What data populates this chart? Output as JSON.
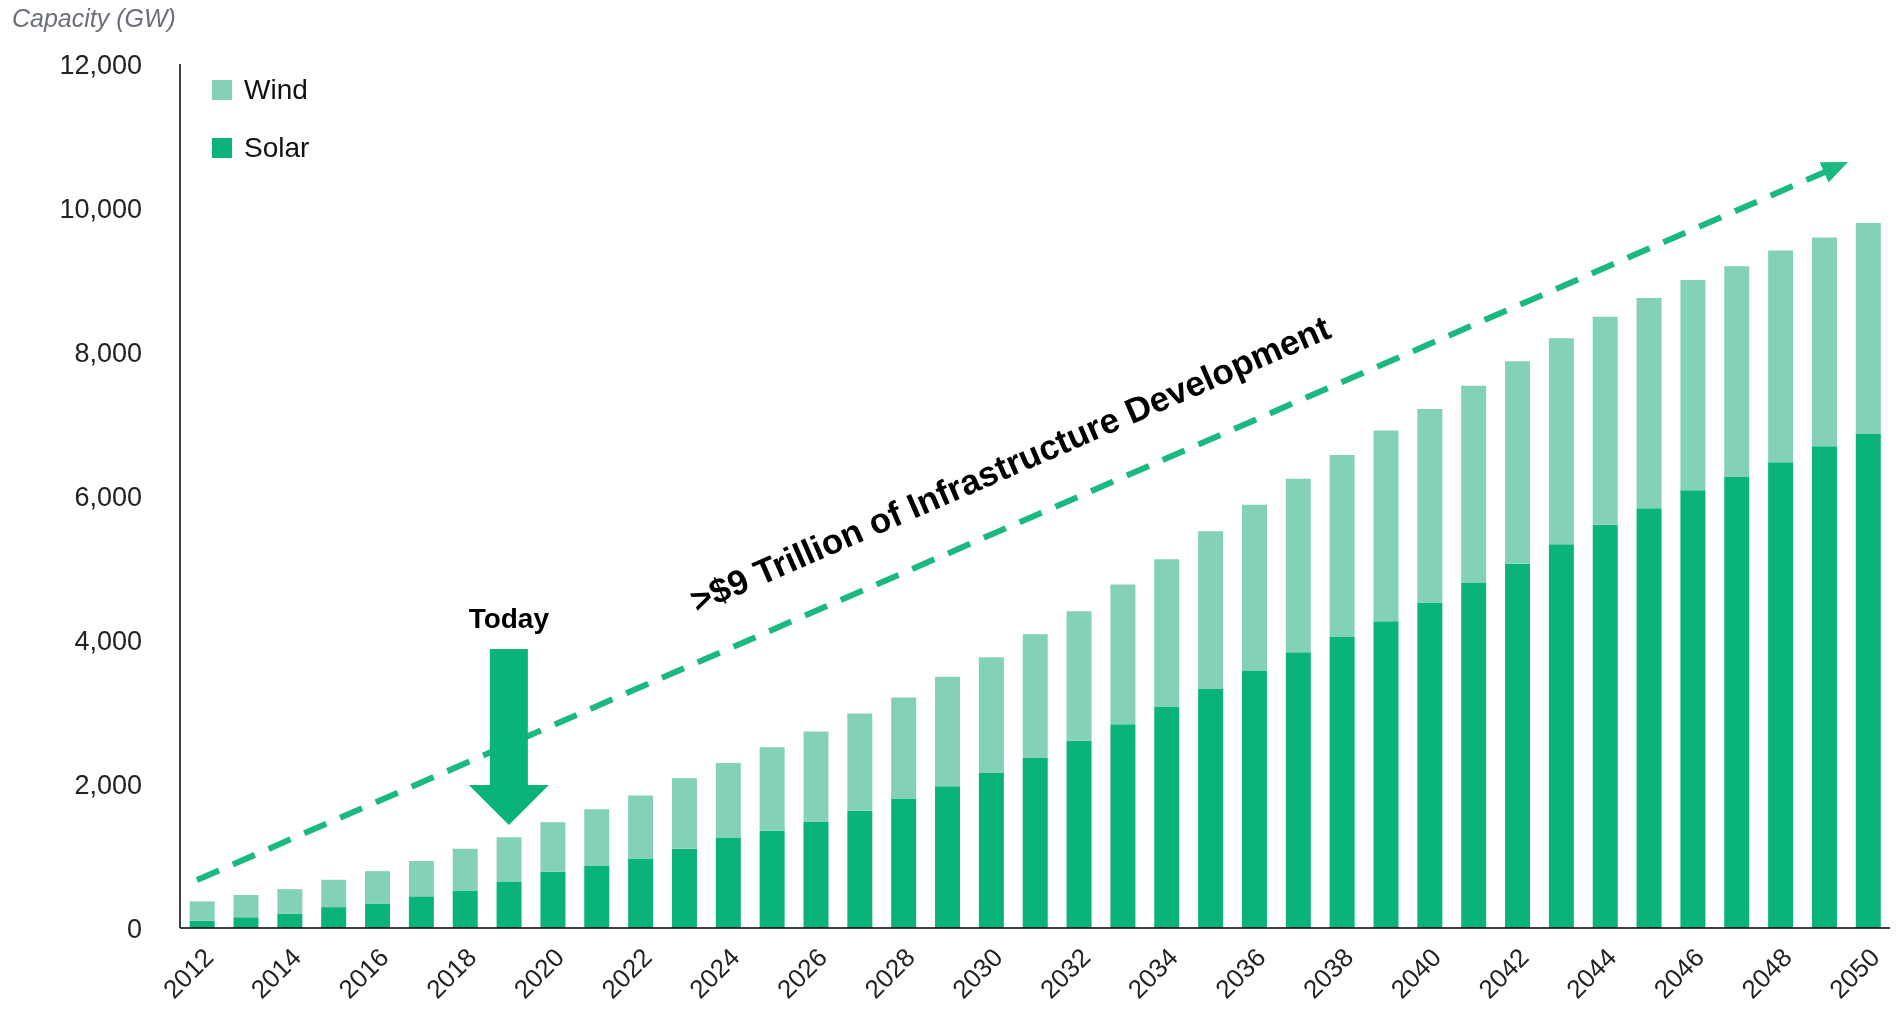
{
  "chart_data": {
    "type": "bar",
    "stacked": true,
    "ylabel": "Capacity (GW)",
    "categories": [
      "2012",
      null,
      "2014",
      null,
      "2016",
      null,
      "2018",
      null,
      "2020",
      null,
      "2022",
      null,
      "2024",
      null,
      "2026",
      null,
      "2028",
      null,
      "2030",
      null,
      "2032",
      null,
      "2034",
      null,
      "2036",
      null,
      "2038",
      null,
      "2040",
      null,
      "2042",
      null,
      "2044",
      null,
      "2046",
      null,
      "2048",
      null,
      "2050"
    ],
    "series": [
      {
        "name": "Solar",
        "color": "#0bb37c",
        "values": [
          100,
          150,
          200,
          290,
          340,
          440,
          520,
          640,
          780,
          860,
          960,
          1100,
          1250,
          1350,
          1480,
          1630,
          1800,
          1970,
          2160,
          2360,
          2600,
          2830,
          3070,
          3320,
          3570,
          3830,
          4040,
          4260,
          4520,
          4790,
          5060,
          5330,
          5600,
          5830,
          6080,
          6270,
          6470,
          6690,
          6860
        ]
      },
      {
        "name": "Wind",
        "color": "#84d2b6",
        "values": [
          270,
          310,
          340,
          380,
          450,
          490,
          580,
          620,
          690,
          790,
          880,
          980,
          1040,
          1160,
          1250,
          1350,
          1400,
          1520,
          1600,
          1720,
          1800,
          1940,
          2050,
          2190,
          2310,
          2410,
          2530,
          2650,
          2690,
          2740,
          2810,
          2860,
          2890,
          2920,
          2920,
          2920,
          2940,
          2900,
          2930
        ]
      }
    ],
    "ylim": [
      0,
      12000
    ],
    "yticks": [
      0,
      {
        "value": 2000,
        "label": "2,000"
      },
      {
        "value": 4000,
        "label": "4,000"
      },
      {
        "value": 6000,
        "label": "6,000"
      },
      {
        "value": 8000,
        "label": "8,000"
      },
      {
        "value": 10000,
        "label": "10,000"
      },
      {
        "value": 12000,
        "label": "12,000"
      }
    ],
    "legend": "top left",
    "annotations": [
      "Today",
      ">$9 Trillion of Infrastructure Development"
    ]
  }
}
